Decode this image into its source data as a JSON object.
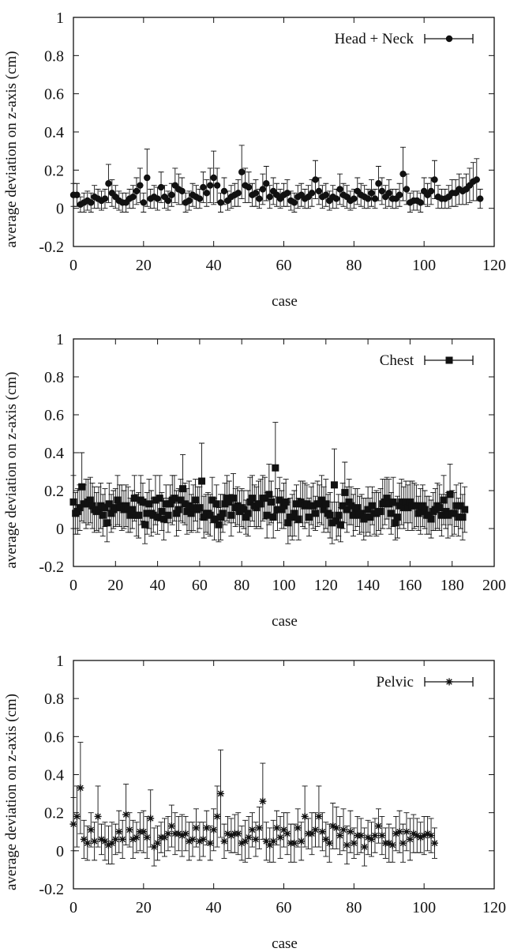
{
  "chart_data": [
    {
      "type": "scatter",
      "series": [
        {
          "name": "Head + Neck",
          "marker": "circle",
          "n_cases": 117,
          "y": [
            0.07,
            0.07,
            0.02,
            0.03,
            0.04,
            0.03,
            0.06,
            0.05,
            0.04,
            0.05,
            0.13,
            0.08,
            0.06,
            0.04,
            0.03,
            0.03,
            0.05,
            0.06,
            0.09,
            0.12,
            0.03,
            0.16,
            0.05,
            0.06,
            0.05,
            0.11,
            0.06,
            0.04,
            0.07,
            0.12,
            0.1,
            0.09,
            0.03,
            0.04,
            0.07,
            0.06,
            0.05,
            0.11,
            0.08,
            0.12,
            0.16,
            0.12,
            0.03,
            0.09,
            0.04,
            0.06,
            0.07,
            0.08,
            0.19,
            0.12,
            0.11,
            0.07,
            0.08,
            0.05,
            0.1,
            0.13,
            0.06,
            0.09,
            0.07,
            0.05,
            0.07,
            0.08,
            0.04,
            0.03,
            0.06,
            0.07,
            0.05,
            0.06,
            0.08,
            0.15,
            0.09,
            0.06,
            0.07,
            0.04,
            0.06,
            0.05,
            0.1,
            0.07,
            0.06,
            0.04,
            0.05,
            0.09,
            0.07,
            0.06,
            0.05,
            0.08,
            0.05,
            0.13,
            0.09,
            0.06,
            0.08,
            0.05,
            0.05,
            0.07,
            0.18,
            0.1,
            0.03,
            0.04,
            0.04,
            0.03,
            0.09,
            0.07,
            0.09,
            0.15,
            0.06,
            0.05,
            0.05,
            0.06,
            0.08,
            0.08,
            0.1,
            0.09,
            0.1,
            0.12,
            0.14,
            0.15,
            0.05
          ],
          "err": [
            0.06,
            0.06,
            0.04,
            0.05,
            0.05,
            0.05,
            0.06,
            0.05,
            0.05,
            0.05,
            0.1,
            0.07,
            0.06,
            0.05,
            0.05,
            0.05,
            0.05,
            0.06,
            0.07,
            0.09,
            0.05,
            0.15,
            0.05,
            0.06,
            0.06,
            0.08,
            0.06,
            0.05,
            0.06,
            0.09,
            0.08,
            0.07,
            0.05,
            0.05,
            0.06,
            0.06,
            0.05,
            0.08,
            0.07,
            0.09,
            0.14,
            0.09,
            0.05,
            0.07,
            0.05,
            0.06,
            0.06,
            0.07,
            0.14,
            0.09,
            0.08,
            0.06,
            0.07,
            0.05,
            0.08,
            0.09,
            0.06,
            0.07,
            0.06,
            0.05,
            0.06,
            0.07,
            0.05,
            0.05,
            0.06,
            0.06,
            0.05,
            0.06,
            0.07,
            0.1,
            0.07,
            0.06,
            0.06,
            0.05,
            0.06,
            0.05,
            0.08,
            0.06,
            0.06,
            0.05,
            0.05,
            0.07,
            0.06,
            0.06,
            0.05,
            0.07,
            0.05,
            0.09,
            0.07,
            0.06,
            0.07,
            0.05,
            0.05,
            0.06,
            0.14,
            0.08,
            0.05,
            0.05,
            0.05,
            0.05,
            0.07,
            0.06,
            0.07,
            0.1,
            0.06,
            0.05,
            0.05,
            0.06,
            0.07,
            0.07,
            0.08,
            0.07,
            0.08,
            0.09,
            0.1,
            0.11,
            0.05
          ]
        }
      ],
      "xlabel": "case",
      "ylabel": "average deviation on z-axis (cm)",
      "xlim": [
        0,
        120
      ],
      "ylim": [
        -0.2,
        1
      ],
      "xticks": [
        "0",
        "20",
        "40",
        "60",
        "80",
        "100",
        "120"
      ],
      "yticks": [
        "-0.2",
        "0",
        "0.2",
        "0.4",
        "0.6",
        "0.8",
        "1"
      ],
      "legend_position": "top-right",
      "grid": false
    },
    {
      "type": "scatter",
      "series": [
        {
          "name": "Chest",
          "marker": "square",
          "n_cases": 187,
          "seed": 7,
          "base": 0.11,
          "spread": 0.05,
          "err_base": 0.08,
          "err_spread": 0.03,
          "highlights": [
            [
              0,
              0.14
            ],
            [
              4,
              0.22
            ],
            [
              52,
              0.21
            ],
            [
              61,
              0.25
            ],
            [
              93,
              0.18
            ],
            [
              96,
              0.32
            ],
            [
              124,
              0.23
            ],
            [
              129,
              0.19
            ],
            [
              179,
              0.18
            ],
            [
              186,
              0.1
            ]
          ]
        }
      ],
      "xlabel": "case",
      "ylabel": "average deviation on z-axis (cm)",
      "xlim": [
        0,
        200
      ],
      "ylim": [
        -0.2,
        1
      ],
      "xticks": [
        "0",
        "20",
        "40",
        "60",
        "80",
        "100",
        "120",
        "140",
        "160",
        "180",
        "200"
      ],
      "yticks": [
        "-0.2",
        "0",
        "0.2",
        "0.4",
        "0.6",
        "0.8",
        "1"
      ],
      "legend_position": "top-right",
      "grid": false
    },
    {
      "type": "scatter",
      "series": [
        {
          "name": "Pelvic",
          "marker": "asterisk",
          "n_cases": 104,
          "seed": 11,
          "base": 0.08,
          "spread": 0.05,
          "err_base": 0.07,
          "err_spread": 0.03,
          "highlights": [
            [
              0,
              0.14
            ],
            [
              1,
              0.18
            ],
            [
              2,
              0.33
            ],
            [
              7,
              0.18
            ],
            [
              15,
              0.19
            ],
            [
              22,
              0.17
            ],
            [
              41,
              0.18
            ],
            [
              42,
              0.3
            ],
            [
              54,
              0.26
            ],
            [
              66,
              0.18
            ],
            [
              70,
              0.18
            ],
            [
              103,
              0.04
            ]
          ]
        }
      ],
      "xlabel": "case",
      "ylabel": "average deviation on z-axis (cm)",
      "xlim": [
        0,
        120
      ],
      "ylim": [
        -0.2,
        1
      ],
      "xticks": [
        "0",
        "20",
        "40",
        "60",
        "80",
        "100",
        "120"
      ],
      "yticks": [
        "-0.2",
        "0",
        "0.2",
        "0.4",
        "0.6",
        "0.8",
        "1"
      ],
      "legend_position": "top-right",
      "grid": false
    }
  ]
}
